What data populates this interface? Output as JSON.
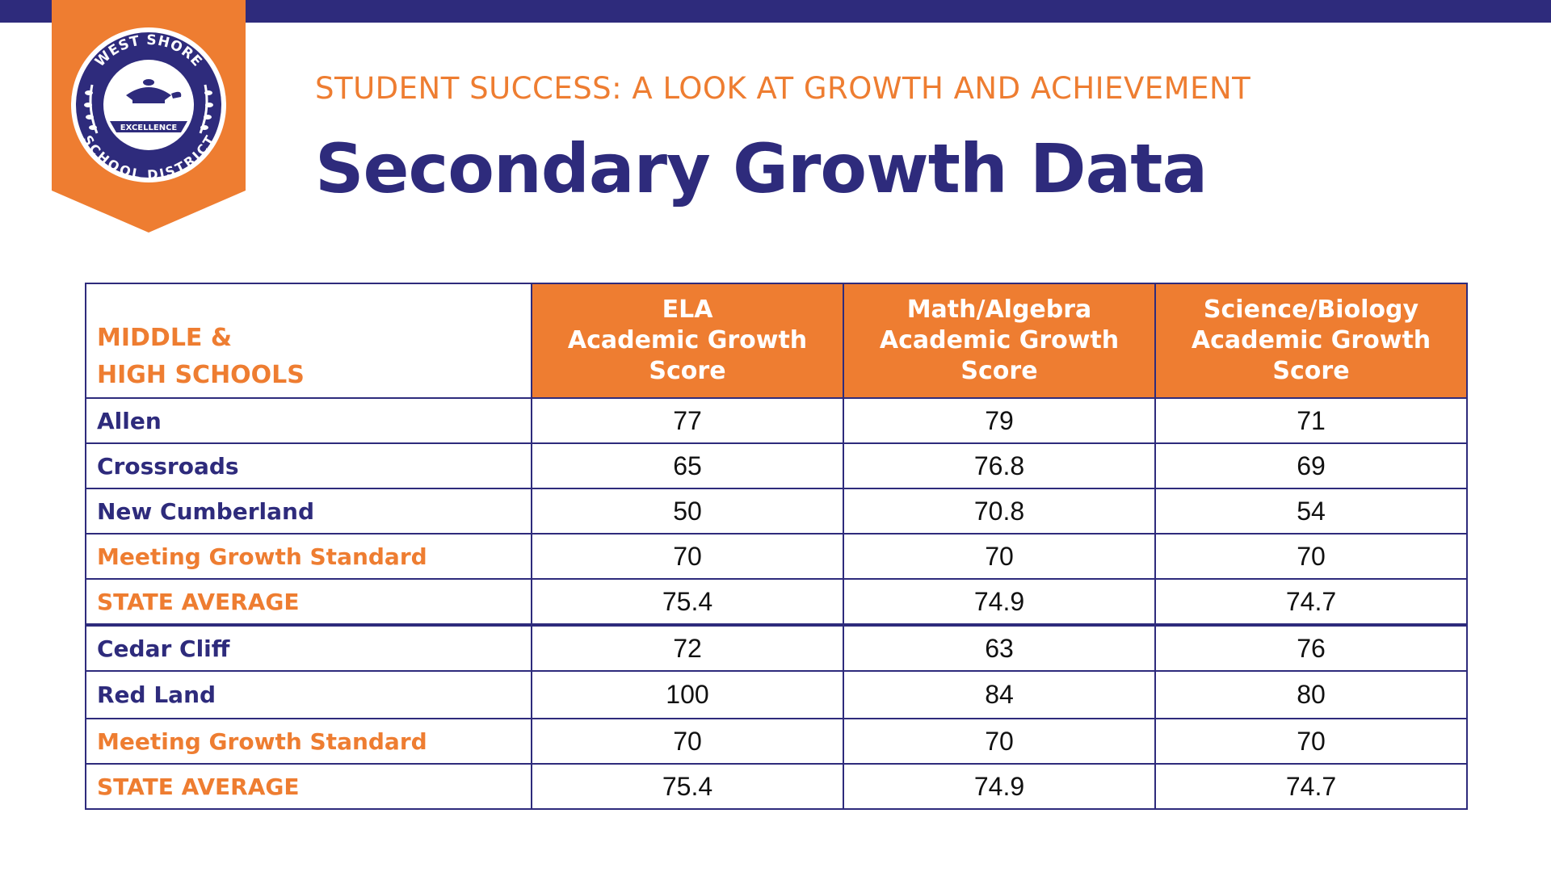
{
  "header": {
    "subtitle": "STUDENT SUCCESS: A LOOK AT GROWTH AND ACHIEVEMENT",
    "title": "Secondary Growth Data"
  },
  "logo": {
    "top_text": "WEST SHORE",
    "bottom_text": "SCHOOL DISTRICT",
    "banner_text": "EXCELLENCE",
    "icon": "lamp-of-learning-icon"
  },
  "colors": {
    "navy": "#2e2b7c",
    "orange": "#ee7d31"
  },
  "table": {
    "corner_line1": "MIDDLE &",
    "corner_line2": "HIGH SCHOOLS",
    "columns": [
      {
        "line1": "ELA",
        "line2": "Academic Growth",
        "line3": "Score"
      },
      {
        "line1": "Math/Algebra",
        "line2": "Academic Growth",
        "line3": "Score"
      },
      {
        "line1": "Science/Biology",
        "line2": "Academic Growth",
        "line3": "Score"
      }
    ],
    "rows": [
      {
        "label": "Allen",
        "values": [
          "77",
          "79",
          "71"
        ]
      },
      {
        "label": "Crossroads",
        "values": [
          "65",
          "76.8",
          "69"
        ]
      },
      {
        "label": "New Cumberland",
        "values": [
          "50",
          "70.8",
          "54"
        ]
      },
      {
        "label": "Meeting Growth Standard",
        "values": [
          "70",
          "70",
          "70"
        ]
      },
      {
        "label": "STATE AVERAGE",
        "values": [
          "75.4",
          "74.9",
          "74.7"
        ]
      },
      {
        "label": "Cedar Cliff",
        "values": [
          "72",
          "63",
          "76"
        ]
      },
      {
        "label": "Red Land",
        "values": [
          "100",
          "84",
          "80"
        ]
      },
      {
        "label": "Meeting Growth Standard",
        "values": [
          "70",
          "70",
          "70"
        ]
      },
      {
        "label": "STATE AVERAGE",
        "values": [
          "75.4",
          "74.9",
          "74.7"
        ]
      }
    ]
  }
}
